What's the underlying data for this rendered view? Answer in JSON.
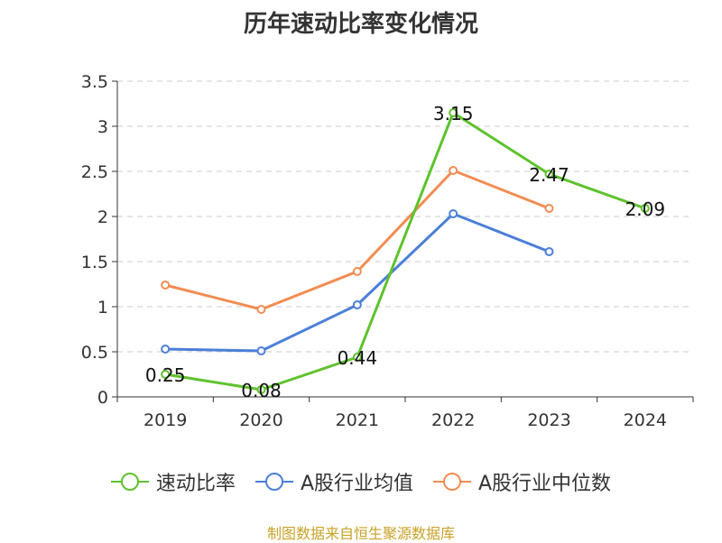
{
  "chart_data": {
    "type": "line",
    "title": "历年速动比率变化情况",
    "categories": [
      "2019",
      "2020",
      "2021",
      "2022",
      "2023",
      "2024"
    ],
    "ylim": [
      0,
      3.5
    ],
    "y_ticks": [
      "0",
      "0.5",
      "1",
      "1.5",
      "2",
      "2.5",
      "3",
      "3.5"
    ],
    "grid": true,
    "legend_position": "bottom",
    "series": [
      {
        "name": "速动比率",
        "color": "#5ec22d",
        "values": [
          0.25,
          0.08,
          0.44,
          3.15,
          2.47,
          2.09
        ],
        "labels": [
          "0.25",
          "0.08",
          "0.44",
          "3.15",
          "2.47",
          "2.09"
        ]
      },
      {
        "name": "A股行业均值",
        "color": "#4b7fd8",
        "values": [
          0.53,
          0.51,
          1.02,
          2.03,
          1.61,
          null
        ]
      },
      {
        "name": "A股行业中位数",
        "color": "#f28c52",
        "values": [
          1.24,
          0.97,
          1.39,
          2.51,
          2.09,
          null
        ]
      }
    ]
  },
  "source": "制图数据来自恒生聚源数据库"
}
